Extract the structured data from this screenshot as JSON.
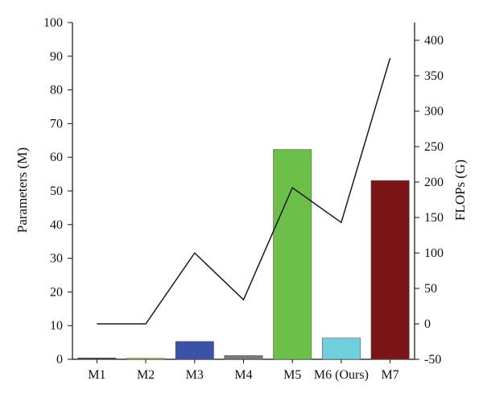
{
  "chart_data": {
    "type": "bar",
    "categories": [
      "M1",
      "M2",
      "M3",
      "M4",
      "M5",
      "M6 (Ours)",
      "M7"
    ],
    "series": [
      {
        "type": "bar",
        "axis": "left",
        "values": [
          0.4,
          0.3,
          5.3,
          1.1,
          62.3,
          6.3,
          53.1
        ],
        "colors": [
          "#3a3a3a",
          "#c8c23a",
          "#3a52a8",
          "#7a7a7a",
          "#6cc04a",
          "#6fcfdc",
          "#7a1416"
        ]
      },
      {
        "type": "line",
        "axis": "right",
        "values": [
          0,
          0,
          100,
          34,
          192,
          143,
          375
        ],
        "color": "#1a1a1a"
      }
    ],
    "ylabel": "Parameters (M)",
    "y2label": "FLOPs (G)",
    "ylim": [
      0,
      100
    ],
    "y2lim": [
      -50,
      425
    ],
    "yticks": [
      0,
      10,
      20,
      30,
      40,
      50,
      60,
      70,
      80,
      90,
      100
    ],
    "y2ticks": [
      -50,
      0,
      50,
      100,
      150,
      200,
      250,
      300,
      350,
      400
    ],
    "grid": false,
    "legend": "none"
  }
}
